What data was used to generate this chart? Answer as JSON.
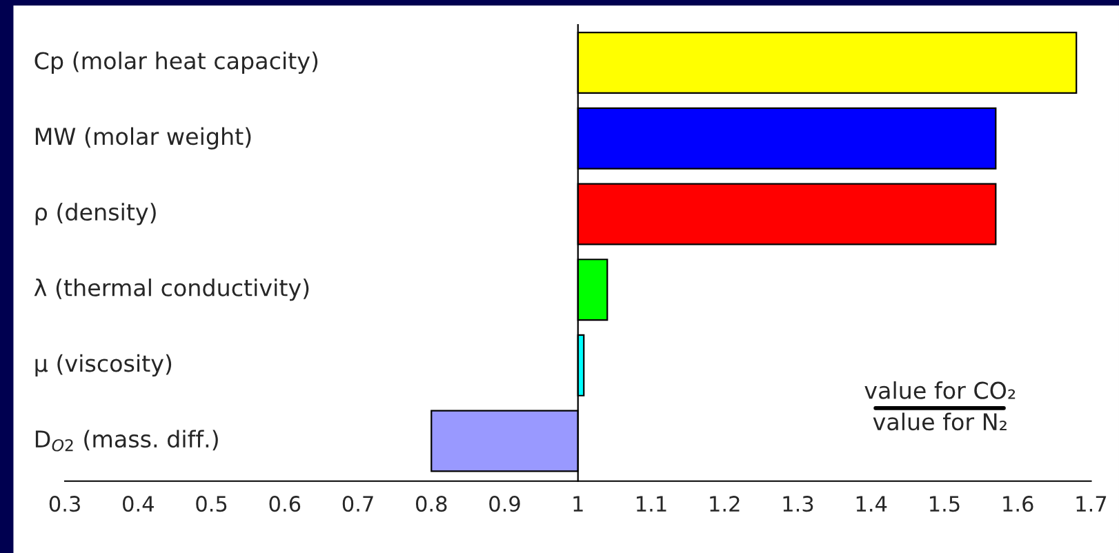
{
  "chart_data": {
    "type": "bar",
    "orientation": "horizontal",
    "categories": [
      "Cp (molar heat capacity)",
      "MW (molar weight)",
      "ρ (density)",
      "λ (thermal conductivity)",
      "μ (viscosity)",
      "D$_{O2}$ (mass. diff.)"
    ],
    "base": [
      1,
      1,
      1,
      1,
      1,
      1
    ],
    "values": [
      0.68,
      0.57,
      0.57,
      0.04,
      0.008,
      -0.2
    ],
    "colors": [
      "#ffff00",
      "#0000ff",
      "#ff0000",
      "#00ff00",
      "#00ffff",
      "#9999ff"
    ],
    "xlim": [
      0.3,
      1.7
    ],
    "xticks": [
      0.3,
      0.4,
      0.5,
      0.6,
      0.7,
      0.8,
      0.9,
      1,
      1.1,
      1.2,
      1.3,
      1.4,
      1.5,
      1.6,
      1.7
    ],
    "annotations": [
      "value for CO₂\nvalue for N₂"
    ],
    "legend": false
  }
}
